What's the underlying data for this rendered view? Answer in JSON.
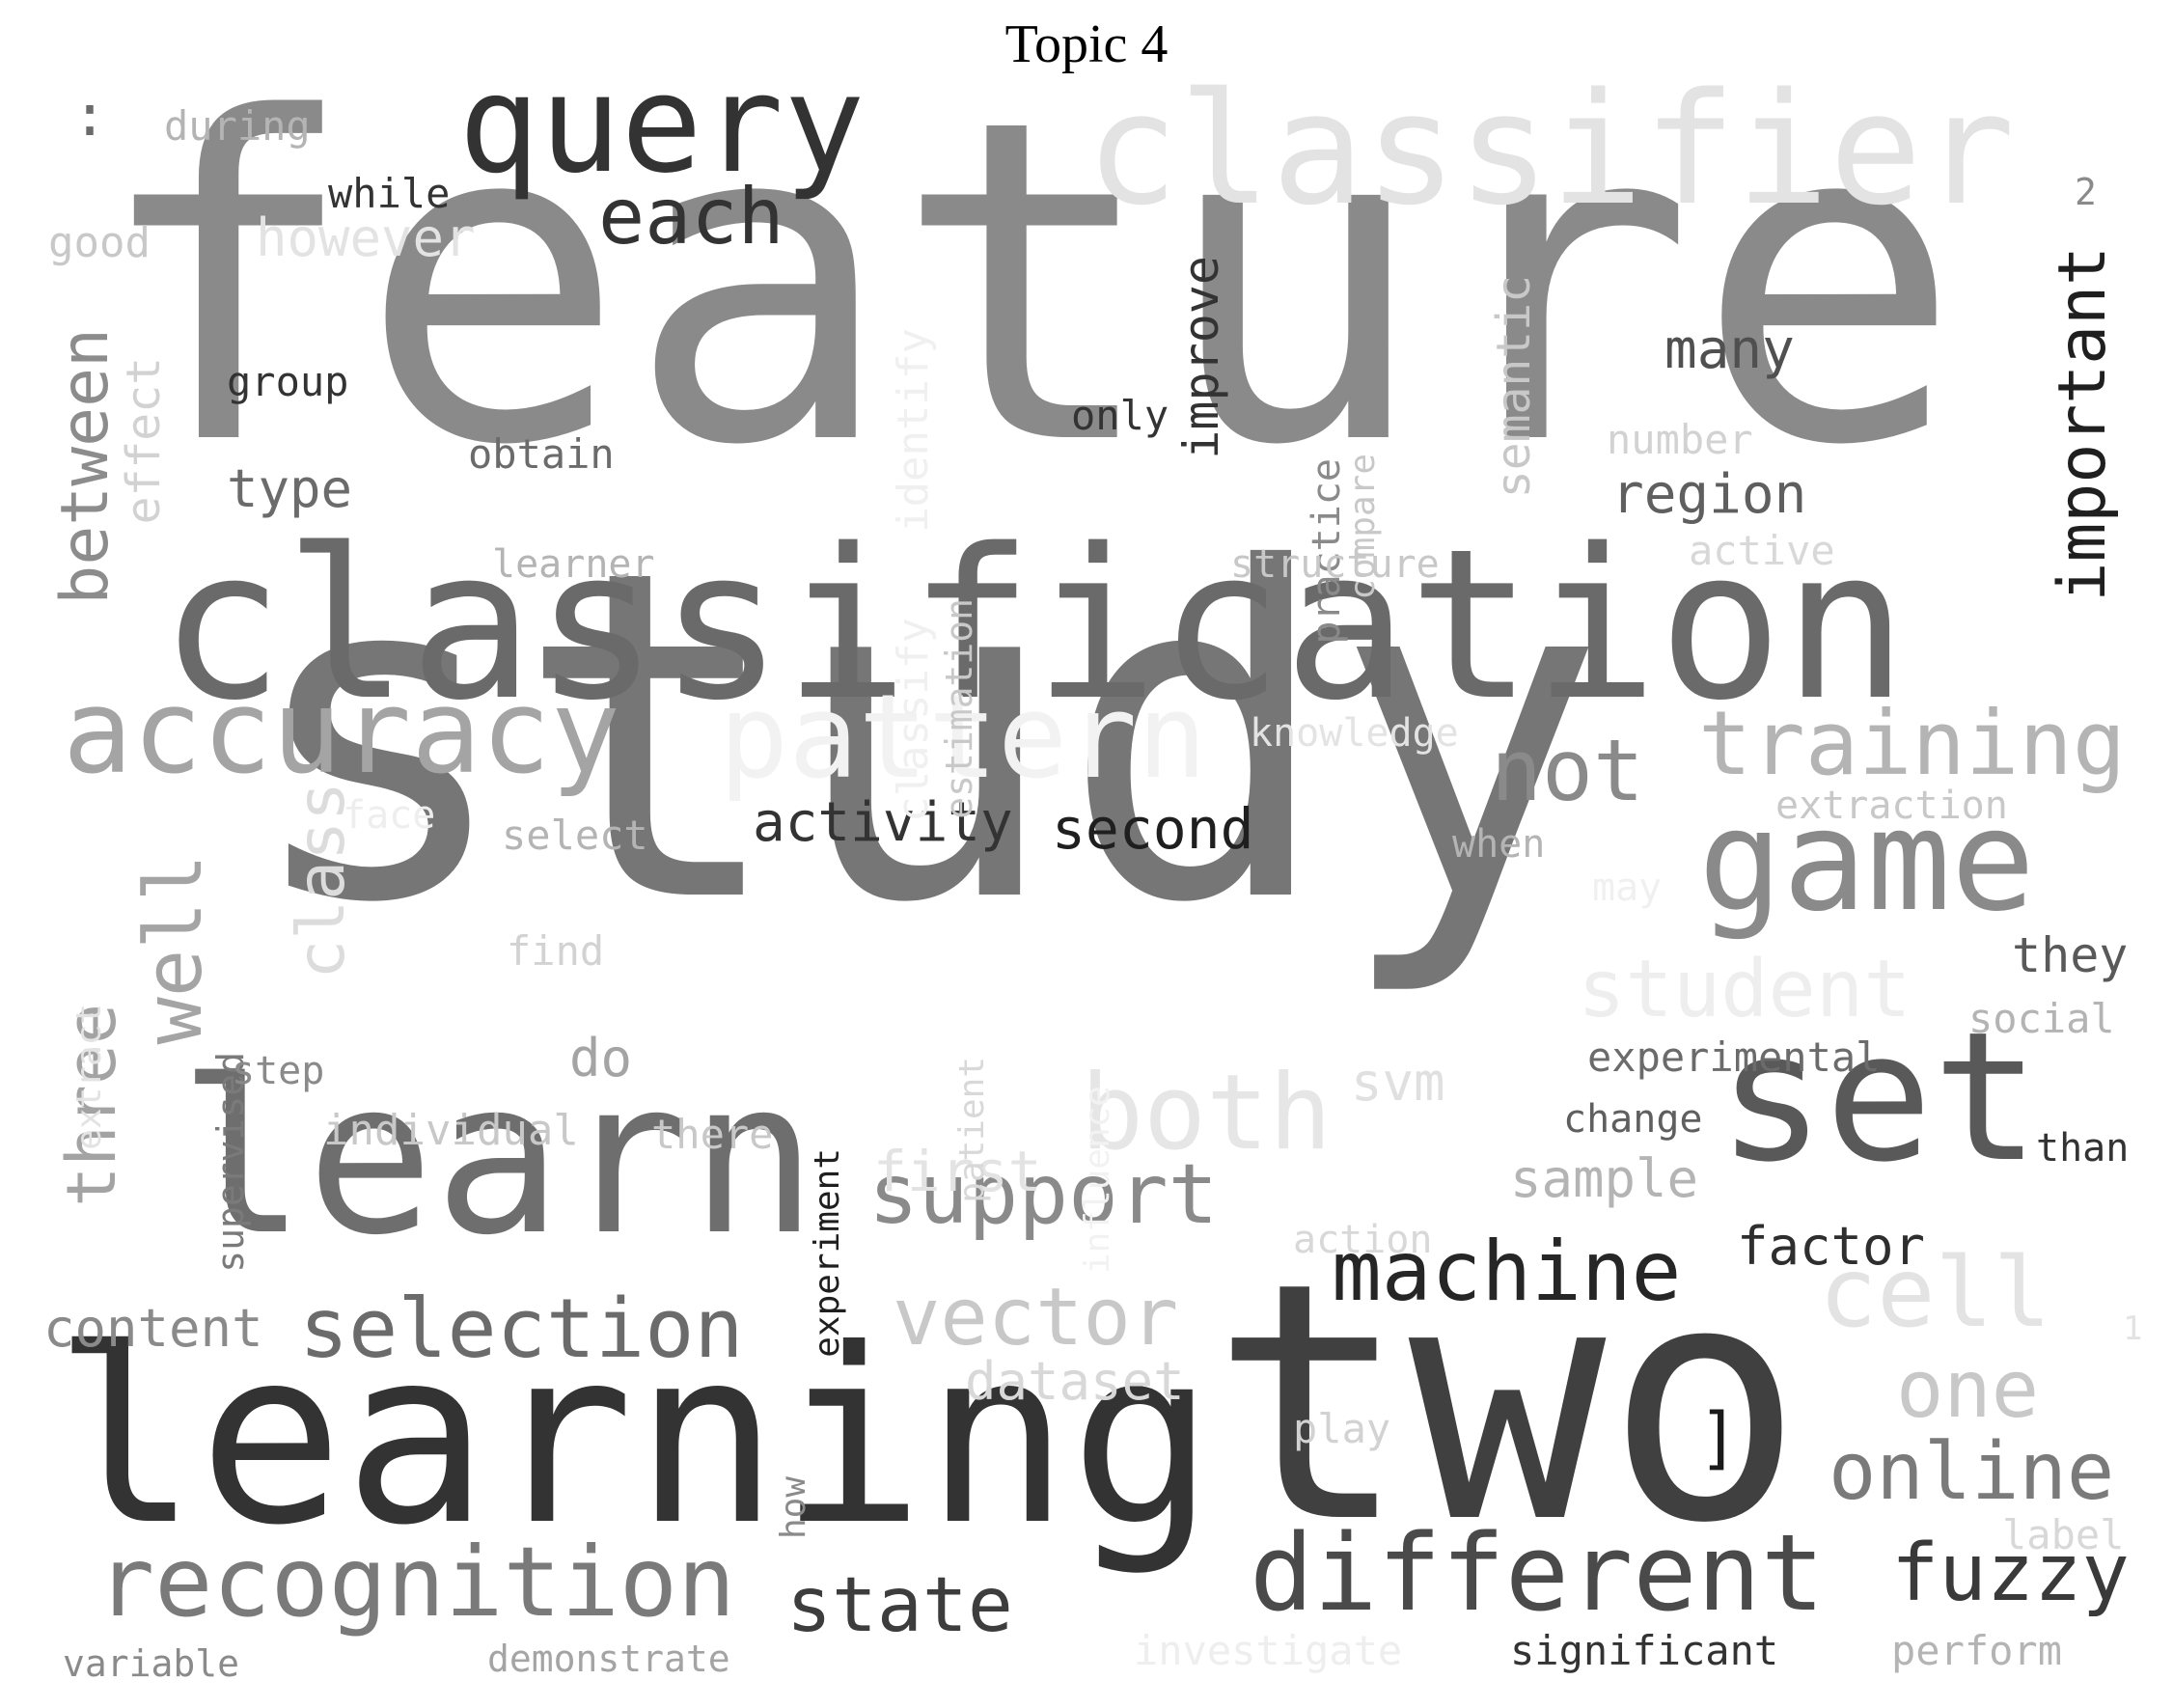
{
  "title": "Topic 4",
  "words": [
    {
      "text": "feature",
      "color": "#8a8a8a"
    },
    {
      "text": "study",
      "color": "#767676"
    },
    {
      "text": "classification",
      "color": "#6a6a6a"
    },
    {
      "text": "learning",
      "color": "#333333"
    },
    {
      "text": "two",
      "color": "#404040"
    },
    {
      "text": "classifier",
      "color": "#e3e3e3"
    },
    {
      "text": "learn",
      "color": "#6e6e6e"
    },
    {
      "text": "query",
      "color": "#333333"
    },
    {
      "text": "set",
      "color": "#595959"
    },
    {
      "text": "game",
      "color": "#8a8a8a"
    },
    {
      "text": "accuracy",
      "color": "#a4a4a4"
    },
    {
      "text": "pattern",
      "color": "#f2f2f2"
    },
    {
      "text": "different",
      "color": "#4a4a4a"
    },
    {
      "text": "recognition",
      "color": "#7a7a7a"
    },
    {
      "text": "both",
      "color": "#e6e6e6"
    },
    {
      "text": "training",
      "color": "#b4b4b4"
    },
    {
      "text": "important",
      "color": "#1f1f1f"
    },
    {
      "text": "selection",
      "color": "#6b6b6b"
    },
    {
      "text": "support",
      "color": "#8a8a8a"
    },
    {
      "text": "machine",
      "color": "#262626"
    },
    {
      "text": "vector",
      "color": "#c8c8c8"
    },
    {
      "text": "fuzzy",
      "color": "#3a3a3a"
    },
    {
      "text": "state",
      "color": "#3d3d3d"
    },
    {
      "text": "cell",
      "color": "#e3e3e3"
    },
    {
      "text": "online",
      "color": "#7a7a7a"
    },
    {
      "text": "student",
      "color": "#eeeeee"
    },
    {
      "text": "not",
      "color": "#8a8a8a"
    },
    {
      "text": "each",
      "color": "#333333"
    },
    {
      "text": "well",
      "color": "#a4a4a4"
    },
    {
      "text": "class",
      "color": "#dcdcdc"
    },
    {
      "text": "between",
      "color": "#8c8c8c"
    },
    {
      "text": "three",
      "color": "#a3a3a3"
    },
    {
      "text": "activity",
      "color": "#333333"
    },
    {
      "text": "second",
      "color": "#1f1f1f"
    },
    {
      "text": "one",
      "color": "#c8c8c8"
    },
    {
      "text": "first",
      "color": "#e3e3e3"
    },
    {
      "text": "semantic",
      "color": "#c8c8c8"
    },
    {
      "text": "improve",
      "color": "#333333"
    },
    {
      "text": "region",
      "color": "#5f5f5f"
    },
    {
      "text": "many",
      "color": "#505050"
    },
    {
      "text": "factor",
      "color": "#2e2e2e"
    },
    {
      "text": "content",
      "color": "#8a8a8a"
    },
    {
      "text": "dataset",
      "color": "#d8d8d8"
    },
    {
      "text": "sample",
      "color": "#b4b4b4"
    },
    {
      "text": "they",
      "color": "#595959"
    },
    {
      "text": "svm",
      "color": "#e0e0e0"
    },
    {
      "text": "type",
      "color": "#6b6b6b"
    },
    {
      "text": "effect",
      "color": "#d2d2d2"
    },
    {
      "text": "however",
      "color": "#e3e3e3"
    },
    {
      "text": "classify",
      "color": "#f0f0f0"
    },
    {
      "text": "identify",
      "color": "#f0f0f0"
    },
    {
      "text": "estimation",
      "color": "#c8c8c8"
    },
    {
      "text": "practice",
      "color": "#8a8a8a"
    },
    {
      "text": "compare",
      "color": "#c8c8c8"
    },
    {
      "text": "supervised",
      "color": "#7a7a7a"
    },
    {
      "text": "experiment",
      "color": "#1f1f1f"
    },
    {
      "text": "patient",
      "color": "#d8d8d8"
    },
    {
      "text": "influence",
      "color": "#f2f2f2"
    },
    {
      "text": "extract",
      "color": "#e3e3e3"
    },
    {
      "text": "group",
      "color": "#333333"
    },
    {
      "text": "obtain",
      "color": "#6b6b6b"
    },
    {
      "text": "only",
      "color": "#333333"
    },
    {
      "text": "number",
      "color": "#d2d2d2"
    },
    {
      "text": "active",
      "color": "#d8d8d8"
    },
    {
      "text": "structure",
      "color": "#c8c8c8"
    },
    {
      "text": "learner",
      "color": "#b4b4b4"
    },
    {
      "text": "knowledge",
      "color": "#e3e3e3"
    },
    {
      "text": "extraction",
      "color": "#c8c8c8"
    },
    {
      "text": "face",
      "color": "#eeeeee"
    },
    {
      "text": "select",
      "color": "#b4b4b4"
    },
    {
      "text": "when",
      "color": "#b4b4b4"
    },
    {
      "text": "find",
      "color": "#d2d2d2"
    },
    {
      "text": "do",
      "color": "#a4a4a4"
    },
    {
      "text": "step",
      "color": "#8a8a8a"
    },
    {
      "text": "individual",
      "color": "#c8c8c8"
    },
    {
      "text": "there",
      "color": "#c8c8c8"
    },
    {
      "text": "experimental",
      "color": "#6b6b6b"
    },
    {
      "text": "social",
      "color": "#b4b4b4"
    },
    {
      "text": "change",
      "color": "#5f5f5f"
    },
    {
      "text": "than",
      "color": "#333333"
    },
    {
      "text": "action",
      "color": "#d8d8d8"
    },
    {
      "text": "play",
      "color": "#d2d2d2"
    },
    {
      "text": "how",
      "color": "#8a8a8a"
    },
    {
      "text": "label",
      "color": "#d8d8d8"
    },
    {
      "text": "perform",
      "color": "#b4b4b4"
    },
    {
      "text": "variable",
      "color": "#8a8a8a"
    },
    {
      "text": "demonstrate",
      "color": "#a4a4a4"
    },
    {
      "text": "investigate",
      "color": "#eeeeee"
    },
    {
      "text": "significant",
      "color": "#333333"
    },
    {
      "text": "during",
      "color": "#b4b4b4"
    },
    {
      "text": "while",
      "color": "#333333"
    },
    {
      "text": "good",
      "color": "#c8c8c8"
    },
    {
      "text": ":",
      "color": "#6b6b6b"
    },
    {
      "text": "2",
      "color": "#8a8a8a"
    },
    {
      "text": "1",
      "color": "#e3e3e3"
    },
    {
      "text": "]",
      "color": "#1a1a1a"
    },
    {
      "text": "may",
      "color": "#f0f0f0"
    }
  ]
}
